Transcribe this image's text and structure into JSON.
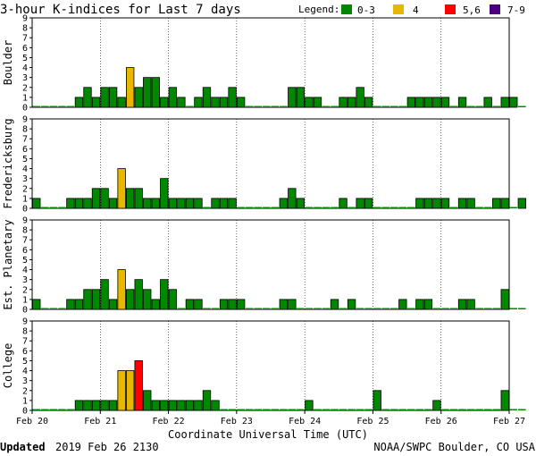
{
  "title": "3-hour K-indices for Last 7 days",
  "legend": {
    "label": "Legend:",
    "items": [
      {
        "label": "0-3",
        "color": "#008800"
      },
      {
        "label": "4",
        "color": "#e8b800"
      },
      {
        "label": "5,6",
        "color": "#ff0000"
      },
      {
        "label": "7-9",
        "color": "#4b0082"
      }
    ]
  },
  "footer": {
    "updated_label": "Updated",
    "updated_value": "2019 Feb 26 2130",
    "source": "NOAA/SWPC Boulder, CO USA"
  },
  "chart_data": {
    "type": "bar",
    "xlabel": "Coordinate Universal Time (UTC)",
    "x_ticks": [
      "Feb 20",
      "Feb 21",
      "Feb 22",
      "Feb 23",
      "Feb 24",
      "Feb 25",
      "Feb 26",
      "Feb 27"
    ],
    "ylim": [
      0,
      9
    ],
    "y_ticks": [
      "0",
      "1",
      "2",
      "3",
      "4",
      "5",
      "6",
      "7",
      "8",
      "9"
    ],
    "bins_per_day": 8,
    "panels": [
      {
        "name": "Boulder",
        "values": [
          0,
          0,
          0,
          0,
          0,
          1,
          2,
          1,
          2,
          2,
          1,
          4,
          2,
          3,
          3,
          1,
          2,
          1,
          0,
          1,
          2,
          1,
          1,
          2,
          1,
          0,
          0,
          0,
          0,
          0,
          2,
          2,
          1,
          1,
          0,
          0,
          1,
          1,
          2,
          1,
          0,
          0,
          0,
          0,
          1,
          1,
          1,
          1,
          1,
          0,
          1,
          0,
          0,
          1,
          0,
          1,
          1,
          0
        ]
      },
      {
        "name": "Fredericksburg",
        "values": [
          1,
          0,
          0,
          0,
          1,
          1,
          1,
          2,
          2,
          1,
          4,
          2,
          2,
          1,
          1,
          3,
          1,
          1,
          1,
          1,
          0,
          1,
          1,
          1,
          0,
          0,
          0,
          0,
          0,
          1,
          2,
          1,
          0,
          0,
          0,
          0,
          1,
          0,
          1,
          1,
          0,
          0,
          0,
          0,
          0,
          1,
          1,
          1,
          1,
          0,
          1,
          1,
          0,
          0,
          1,
          1,
          0,
          1
        ]
      },
      {
        "name": "Est. Planetary",
        "values": [
          1,
          0,
          0,
          0,
          1,
          1,
          2,
          2,
          3,
          1,
          4,
          2,
          3,
          2,
          1,
          3,
          2,
          0,
          1,
          1,
          0,
          0,
          1,
          1,
          1,
          0,
          0,
          0,
          0,
          1,
          1,
          0,
          0,
          0,
          0,
          1,
          0,
          1,
          0,
          0,
          0,
          0,
          0,
          1,
          0,
          1,
          1,
          0,
          0,
          0,
          1,
          1,
          0,
          0,
          0,
          2,
          0,
          0
        ]
      },
      {
        "name": "College",
        "values": [
          0,
          0,
          0,
          0,
          0,
          1,
          1,
          1,
          1,
          1,
          4,
          4,
          5,
          2,
          1,
          1,
          1,
          1,
          1,
          1,
          2,
          1,
          0,
          0,
          0,
          0,
          0,
          0,
          0,
          0,
          0,
          0,
          1,
          0,
          0,
          0,
          0,
          0,
          0,
          0,
          2,
          0,
          0,
          0,
          0,
          0,
          0,
          1,
          0,
          0,
          0,
          0,
          0,
          0,
          0,
          2,
          0,
          0
        ]
      }
    ]
  }
}
